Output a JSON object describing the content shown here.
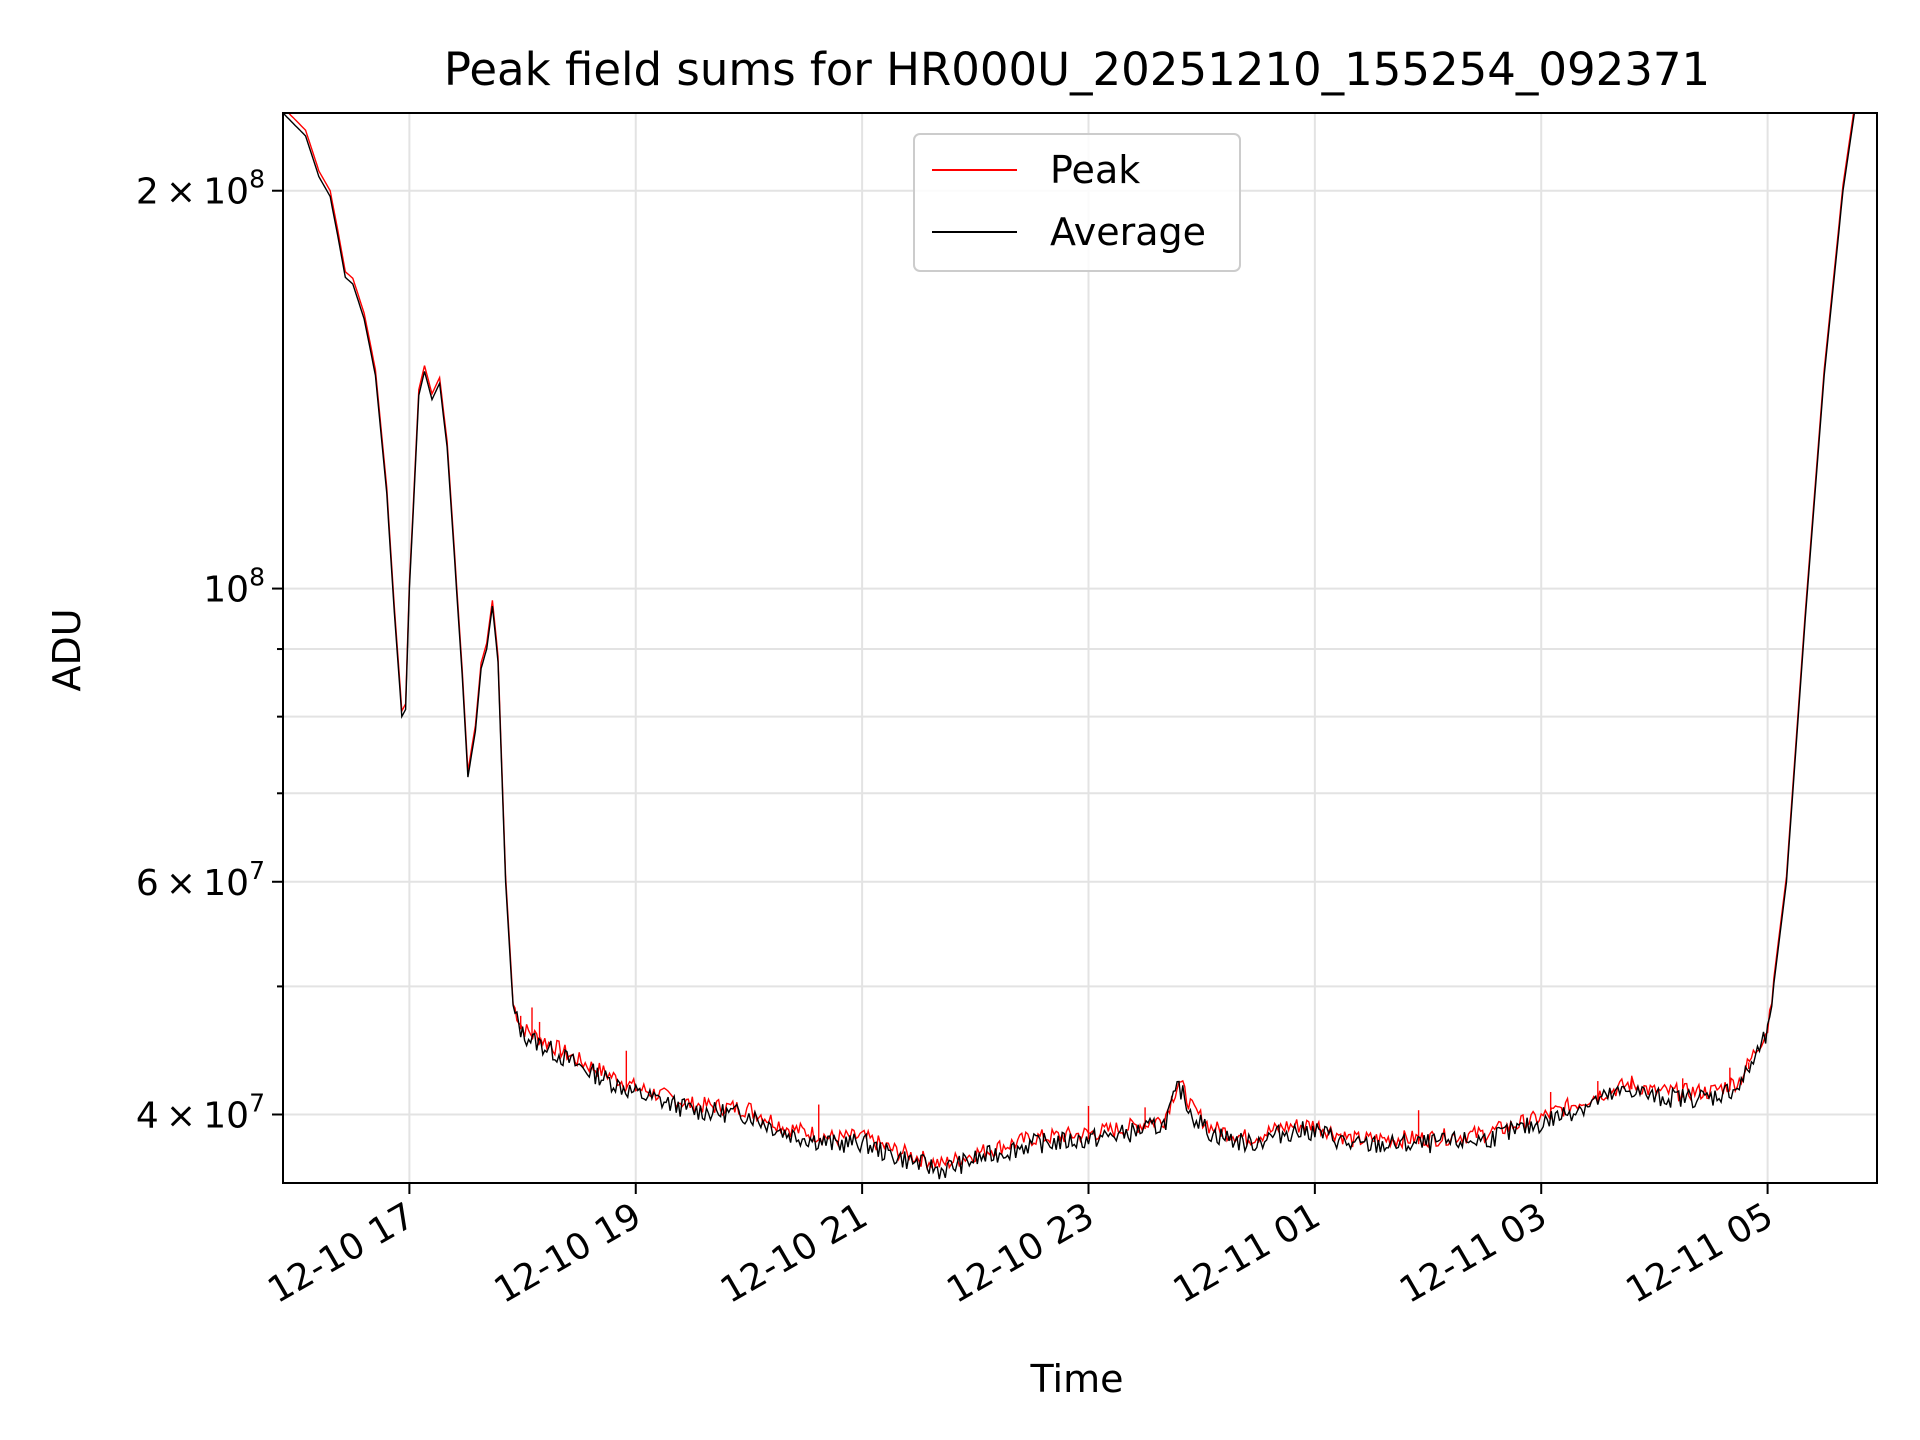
{
  "chart_data": {
    "type": "line",
    "title": "Peak field sums for HR000U_20251210_155254_092371",
    "xlabel": "Time",
    "ylabel": "ADU",
    "yscale": "log",
    "xlim": [
      "2025-12-10T15:53",
      "2025-12-11T05:58"
    ],
    "ylim": [
      35500000,
      229000000
    ],
    "grid": true,
    "legend": {
      "location": "top-center",
      "entries": [
        "Peak",
        "Average"
      ]
    },
    "x_ticks": [
      {
        "time": "2025-12-10T17:00",
        "label": "12-10 17"
      },
      {
        "time": "2025-12-10T19:00",
        "label": "12-10 19"
      },
      {
        "time": "2025-12-10T21:00",
        "label": "12-10 21"
      },
      {
        "time": "2025-12-10T23:00",
        "label": "12-10 23"
      },
      {
        "time": "2025-12-11T01:00",
        "label": "12-11 01"
      },
      {
        "time": "2025-12-11T03:00",
        "label": "12-11 03"
      },
      {
        "time": "2025-12-11T05:00",
        "label": "12-11 05"
      }
    ],
    "y_ticks": [
      {
        "value": 40000000,
        "mantissa": "4",
        "exponent": "7"
      },
      {
        "value": 60000000,
        "mantissa": "6",
        "exponent": "7"
      },
      {
        "value": 100000000,
        "mantissa": "",
        "exponent": "8"
      },
      {
        "value": 200000000,
        "mantissa": "2",
        "exponent": "8"
      }
    ],
    "y_minor_ticks": [
      50000000,
      70000000,
      80000000,
      90000000
    ],
    "series": [
      {
        "name": "Average",
        "color": "#000000",
        "points": [
          [
            "2025-12-10T15:53",
            229000000
          ],
          [
            "2025-12-10T16:05",
            220000000
          ],
          [
            "2025-12-10T16:12",
            205000000
          ],
          [
            "2025-12-10T16:18",
            198000000
          ],
          [
            "2025-12-10T16:22",
            185000000
          ],
          [
            "2025-12-10T16:26",
            172000000
          ],
          [
            "2025-12-10T16:30",
            170000000
          ],
          [
            "2025-12-10T16:36",
            160000000
          ],
          [
            "2025-12-10T16:42",
            145000000
          ],
          [
            "2025-12-10T16:48",
            118000000
          ],
          [
            "2025-12-10T16:52",
            96000000
          ],
          [
            "2025-12-10T16:56",
            80000000
          ],
          [
            "2025-12-10T16:58",
            81000000
          ],
          [
            "2025-12-10T17:00",
            100000000
          ],
          [
            "2025-12-10T17:03",
            122000000
          ],
          [
            "2025-12-10T17:05",
            140000000
          ],
          [
            "2025-12-10T17:08",
            146000000
          ],
          [
            "2025-12-10T17:12",
            139000000
          ],
          [
            "2025-12-10T17:16",
            143000000
          ],
          [
            "2025-12-10T17:20",
            128000000
          ],
          [
            "2025-12-10T17:24",
            105000000
          ],
          [
            "2025-12-10T17:28",
            86000000
          ],
          [
            "2025-12-10T17:31",
            72000000
          ],
          [
            "2025-12-10T17:35",
            78000000
          ],
          [
            "2025-12-10T17:38",
            87000000
          ],
          [
            "2025-12-10T17:41",
            90000000
          ],
          [
            "2025-12-10T17:44",
            97000000
          ],
          [
            "2025-12-10T17:47",
            88000000
          ],
          [
            "2025-12-10T17:51",
            60000000
          ],
          [
            "2025-12-10T17:55",
            48000000
          ],
          [
            "2025-12-10T18:00",
            46000000
          ],
          [
            "2025-12-10T18:30",
            43500000
          ],
          [
            "2025-12-10T19:00",
            41500000
          ],
          [
            "2025-12-10T19:30",
            40300000
          ],
          [
            "2025-12-10T20:00",
            40000000
          ],
          [
            "2025-12-10T20:20",
            38700000
          ],
          [
            "2025-12-10T20:45",
            38000000
          ],
          [
            "2025-12-10T21:00",
            38100000
          ],
          [
            "2025-12-10T21:15",
            37300000
          ],
          [
            "2025-12-10T21:42",
            36300000
          ],
          [
            "2025-12-10T22:00",
            37000000
          ],
          [
            "2025-12-10T22:30",
            38000000
          ],
          [
            "2025-12-10T23:00",
            38300000
          ],
          [
            "2025-12-10T23:20",
            38700000
          ],
          [
            "2025-12-10T23:40",
            39300000
          ],
          [
            "2025-12-10T23:48",
            42000000
          ],
          [
            "2025-12-10T23:55",
            40000000
          ],
          [
            "2025-12-11T00:05",
            38700000
          ],
          [
            "2025-12-11T00:25",
            38000000
          ],
          [
            "2025-12-11T00:45",
            38800000
          ],
          [
            "2025-12-11T01:00",
            38900000
          ],
          [
            "2025-12-11T01:20",
            37900000
          ],
          [
            "2025-12-11T02:00",
            38000000
          ],
          [
            "2025-12-11T02:30",
            38300000
          ],
          [
            "2025-12-11T03:00",
            39400000
          ],
          [
            "2025-12-11T03:30",
            41000000
          ],
          [
            "2025-12-11T03:48",
            41800000
          ],
          [
            "2025-12-11T04:00",
            41200000
          ],
          [
            "2025-12-11T04:30",
            41200000
          ],
          [
            "2025-12-11T04:45",
            42000000
          ],
          [
            "2025-12-11T05:00",
            46000000
          ],
          [
            "2025-12-11T05:10",
            60000000
          ],
          [
            "2025-12-11T05:20",
            95000000
          ],
          [
            "2025-12-11T05:30",
            145000000
          ],
          [
            "2025-12-11T05:40",
            200000000
          ],
          [
            "2025-12-11T05:46",
            229000000
          ]
        ]
      },
      {
        "name": "Peak",
        "color": "#ff0000",
        "offset_factor": 1.01,
        "spikes": [
          [
            "2025-12-10T17:59",
            47500000
          ],
          [
            "2025-12-10T18:05",
            48200000
          ],
          [
            "2025-12-10T18:09",
            47000000
          ],
          [
            "2025-12-10T18:55",
            44700000
          ],
          [
            "2025-12-10T20:37",
            40700000
          ],
          [
            "2025-12-10T23:00",
            40600000
          ],
          [
            "2025-12-10T23:30",
            40500000
          ],
          [
            "2025-12-11T01:55",
            40300000
          ],
          [
            "2025-12-11T03:05",
            41600000
          ],
          [
            "2025-12-11T03:30",
            42400000
          ],
          [
            "2025-12-11T03:48",
            42800000
          ],
          [
            "2025-12-11T04:15",
            42600000
          ],
          [
            "2025-12-11T04:40",
            43400000
          ],
          [
            "2025-12-11T04:50",
            43800000
          ]
        ]
      }
    ]
  }
}
